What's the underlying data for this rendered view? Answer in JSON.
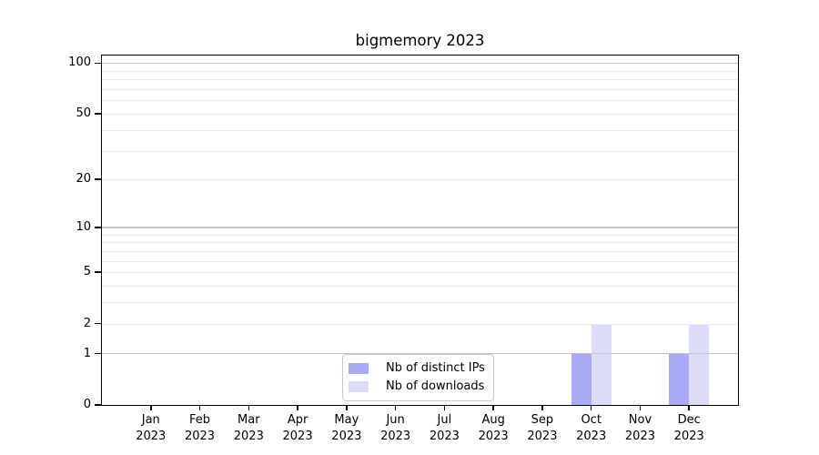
{
  "chart_data": {
    "type": "bar",
    "title": "bigmemory 2023",
    "categories": [
      "Jan 2023",
      "Feb 2023",
      "Mar 2023",
      "Apr 2023",
      "May 2023",
      "Jun 2023",
      "Jul 2023",
      "Aug 2023",
      "Sep 2023",
      "Oct 2023",
      "Nov 2023",
      "Dec 2023"
    ],
    "series": [
      {
        "name": "Nb of distinct IPs",
        "color": "#a9a9f8",
        "values": [
          0,
          0,
          0,
          0,
          0,
          0,
          0,
          0,
          0,
          1,
          0,
          1
        ]
      },
      {
        "name": "Nb of downloads",
        "color": "#dcdcf8",
        "values": [
          0,
          0,
          0,
          0,
          0,
          0,
          0,
          0,
          0,
          2,
          0,
          2
        ]
      }
    ],
    "yscale": "log1p",
    "ylim": [
      0,
      111
    ],
    "yticks_labeled": [
      0,
      1,
      2,
      5,
      10,
      20,
      50,
      100
    ],
    "grid_major_values": [
      1,
      10,
      100
    ],
    "grid_minor_values": [
      2,
      3,
      4,
      5,
      6,
      7,
      8,
      9,
      20,
      30,
      40,
      50,
      60,
      70,
      80,
      90
    ],
    "grid_major_color": "#c3c3c3",
    "grid_minor_color": "#ececec",
    "axis_color": "#000000",
    "background_color": "#ffffff",
    "legend_position": "bottom-center",
    "grid": "horizontal",
    "xlabel": "",
    "ylabel": ""
  }
}
